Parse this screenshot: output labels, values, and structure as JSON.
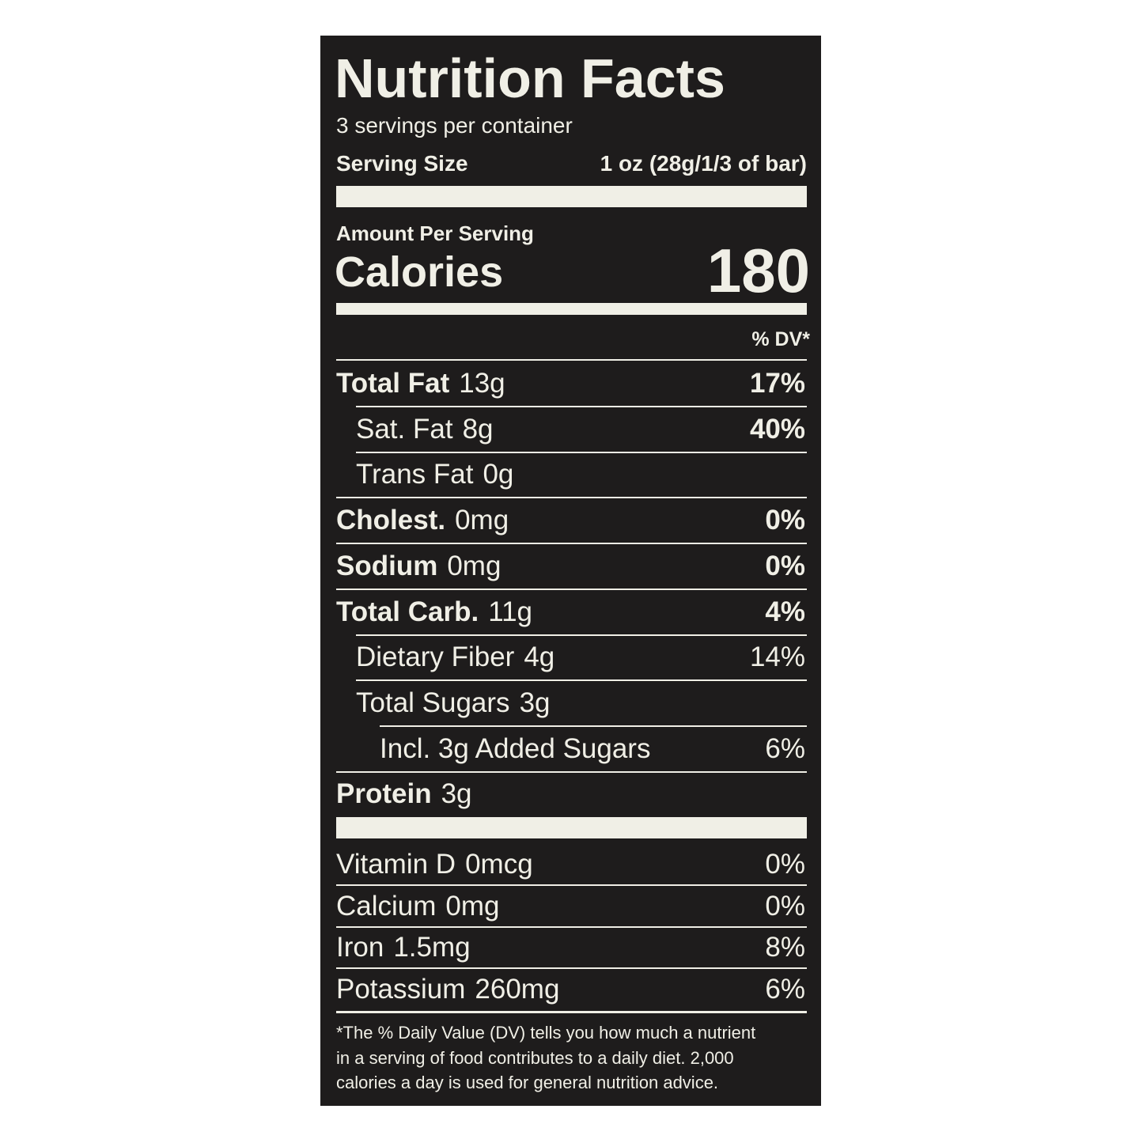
{
  "header": {
    "title": "Nutrition Facts",
    "servings": "3 servings per container",
    "serving_size_label": "Serving Size",
    "serving_size": "1 oz (28g/1/3 of bar)"
  },
  "calories": {
    "amount_label": "Amount Per Serving",
    "label": "Calories",
    "value": "180"
  },
  "dv_header": "% DV*",
  "nutrients": [
    {
      "name": "Total Fat",
      "amount": "13g",
      "dv": "17%"
    },
    {
      "name": "Sat. Fat",
      "amount": "8g",
      "dv": "40%"
    },
    {
      "name": "Trans Fat",
      "amount": "0g",
      "dv": null
    },
    {
      "name": "Cholest.",
      "amount": "0mg",
      "dv": "0%"
    },
    {
      "name": "Sodium",
      "amount": "0mg",
      "dv": "0%"
    },
    {
      "name": "Total Carb.",
      "amount": "11g",
      "dv": "4%"
    },
    {
      "name": "Dietary Fiber",
      "amount": "4g",
      "dv": "14%"
    },
    {
      "name": "Total Sugars",
      "amount": "3g",
      "dv": null
    },
    {
      "name": "Incl. 3g Added Sugars",
      "amount": null,
      "dv": "6%"
    },
    {
      "name": "Protein",
      "amount": "3g",
      "dv": null
    }
  ],
  "vitamins": [
    {
      "name": "Vitamin D",
      "amount": "0mcg",
      "dv": "0%"
    },
    {
      "name": "Calcium",
      "amount": "0mg",
      "dv": "0%"
    },
    {
      "name": "Iron",
      "amount": "1.5mg",
      "dv": "8%"
    },
    {
      "name": "Potassium",
      "amount": "260mg",
      "dv": "6%"
    }
  ],
  "footnote": [
    "*The % Daily Value (DV) tells you how much a nutrient",
    "in a serving of food contributes to a daily diet. 2,000",
    "calories a day is used for general nutrition advice."
  ]
}
